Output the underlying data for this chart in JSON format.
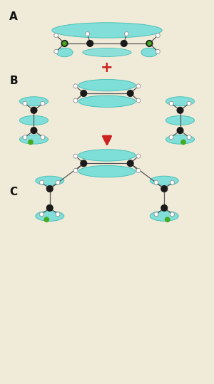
{
  "bg_color": "#f0ead8",
  "teal_fill": "#72ddd8",
  "teal_edge": "#30b8b0",
  "white_fill": "#f8f8f8",
  "black_atom": "#1a1a1a",
  "green_atom": "#44aa22",
  "open_atom_fill": "#ffffff",
  "open_atom_edge": "#999999",
  "bond_color": "#555555",
  "label_color": "#111111",
  "plus_color": "#cc2222",
  "arrow_color": "#cc2222",
  "label_A": "A",
  "label_B": "B",
  "label_C": "C"
}
